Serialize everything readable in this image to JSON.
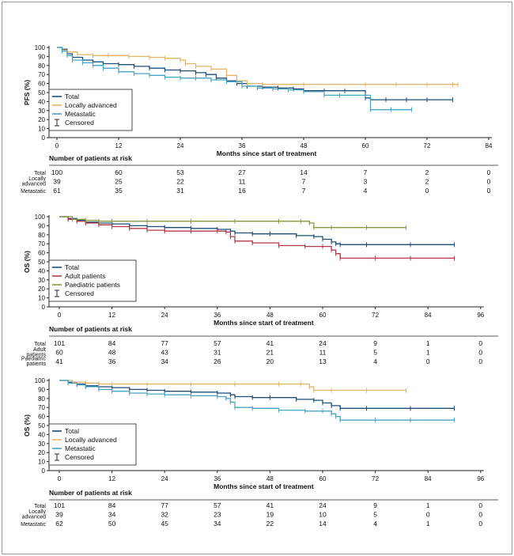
{
  "chart_data": [
    {
      "type": "line",
      "ylabel": "PFS (%)",
      "xlabel": "Months since start of treatment",
      "xlim": [
        0,
        84
      ],
      "ylim": [
        0,
        100
      ],
      "xticks": [
        "0",
        "12",
        "24",
        "36",
        "48",
        "60",
        "72",
        "84"
      ],
      "yticks": [
        "0",
        "10",
        "20",
        "30",
        "40",
        "50",
        "60",
        "70",
        "80",
        "90",
        "100"
      ],
      "legend_position": "bottom-left",
      "legend_censored": "Censored",
      "series": [
        {
          "name": "Total",
          "color": "#1f4e79",
          "x": [
            0,
            1,
            2,
            3,
            5,
            7,
            9,
            12,
            15,
            18,
            21,
            24,
            27,
            29,
            31,
            33,
            35,
            37,
            40,
            43,
            46,
            48,
            52,
            56,
            60,
            61,
            64,
            68,
            72,
            77
          ],
          "y": [
            100,
            98,
            93,
            89,
            86,
            84,
            82,
            81,
            79,
            77,
            75,
            74,
            72,
            70,
            66,
            63,
            60,
            57,
            56,
            55,
            54,
            52,
            52,
            52,
            44,
            42,
            42,
            42,
            42,
            42
          ]
        },
        {
          "name": "Locally advanced",
          "color": "#e3b46a",
          "x": [
            0,
            1,
            2,
            4,
            7,
            10,
            14,
            18,
            21,
            24,
            25,
            27,
            30,
            33,
            35,
            37,
            40,
            48,
            60,
            66,
            72,
            77,
            78
          ],
          "y": [
            100,
            97,
            95,
            92,
            91,
            91,
            90,
            89,
            88,
            86,
            82,
            79,
            76,
            69,
            63,
            60,
            59,
            59,
            59,
            59,
            59,
            59,
            59
          ]
        },
        {
          "name": "Metastatic",
          "color": "#4aa4c4",
          "x": [
            0,
            1,
            2,
            3,
            5,
            7,
            9,
            12,
            15,
            18,
            21,
            24,
            27,
            30,
            33,
            36,
            39,
            42,
            45,
            48,
            52,
            55,
            60,
            61,
            65,
            69
          ],
          "y": [
            100,
            96,
            91,
            86,
            83,
            80,
            77,
            73,
            71,
            69,
            67,
            66,
            66,
            64,
            62,
            57,
            55,
            54,
            53,
            51,
            47,
            47,
            47,
            31,
            31,
            31
          ]
        }
      ],
      "risk_table": {
        "title": "Number of patients at risk",
        "times": [
          0,
          12,
          24,
          36,
          48,
          60,
          72,
          84
        ],
        "rows": [
          {
            "label": "Total",
            "values": [
              "100",
              "60",
              "53",
              "27",
              "14",
              "7",
              "2",
              "0"
            ]
          },
          {
            "label": "Locally advanced",
            "values": [
              "39",
              "25",
              "22",
              "11",
              "7",
              "3",
              "2",
              "0"
            ]
          },
          {
            "label": "Metastatic",
            "values": [
              "61",
              "35",
              "31",
              "16",
              "7",
              "4",
              "0",
              "0"
            ]
          }
        ]
      }
    },
    {
      "type": "line",
      "ylabel": "OS (%)",
      "xlabel": "Months since start of treatment",
      "xlim": [
        0,
        96
      ],
      "ylim": [
        0,
        100
      ],
      "xticks": [
        "0",
        "12",
        "24",
        "36",
        "48",
        "60",
        "72",
        "84",
        "96"
      ],
      "yticks": [
        "0",
        "10",
        "20",
        "30",
        "40",
        "50",
        "60",
        "70",
        "80",
        "90",
        "100"
      ],
      "legend_position": "bottom-left",
      "legend_censored": "Censored",
      "series": [
        {
          "name": "Total",
          "color": "#1f4e79",
          "x": [
            0,
            2,
            4,
            6,
            9,
            12,
            16,
            20,
            24,
            30,
            36,
            39,
            40,
            44,
            48,
            54,
            58,
            60,
            62,
            63,
            64,
            70,
            80,
            90
          ],
          "y": [
            100,
            98,
            96,
            94,
            93,
            92,
            90,
            89,
            88,
            87,
            86,
            84,
            82,
            81,
            81,
            79,
            78,
            75,
            72,
            70,
            69,
            69,
            69,
            69
          ]
        },
        {
          "name": "Adult patients",
          "color": "#b23a48",
          "x": [
            0,
            2,
            4,
            6,
            9,
            12,
            16,
            20,
            24,
            30,
            36,
            38,
            39,
            40,
            44,
            50,
            56,
            60,
            62,
            63,
            64,
            72,
            80,
            90
          ],
          "y": [
            100,
            97,
            95,
            93,
            91,
            89,
            87,
            85,
            84,
            84,
            84,
            83,
            78,
            73,
            71,
            68,
            67,
            67,
            63,
            59,
            54,
            54,
            54,
            54
          ]
        },
        {
          "name": "Paediatric patients",
          "color": "#8a9a3e",
          "x": [
            0,
            3,
            6,
            9,
            12,
            20,
            30,
            40,
            50,
            55,
            57,
            58,
            62,
            70,
            79
          ],
          "y": [
            100,
            97,
            96,
            95,
            95,
            95,
            95,
            95,
            95,
            95,
            93,
            88,
            88,
            88,
            88
          ]
        }
      ],
      "risk_table": {
        "title": "Number of patients at risk",
        "times": [
          0,
          12,
          24,
          36,
          48,
          60,
          72,
          84,
          96
        ],
        "rows": [
          {
            "label": "Total",
            "values": [
              "101",
              "84",
              "77",
              "57",
              "41",
              "24",
              "9",
              "1",
              "0"
            ]
          },
          {
            "label": "Adult patients",
            "values": [
              "60",
              "48",
              "43",
              "31",
              "21",
              "11",
              "5",
              "1",
              "0"
            ]
          },
          {
            "label": "Paediatric patients",
            "values": [
              "41",
              "36",
              "34",
              "26",
              "20",
              "13",
              "4",
              "0",
              "0"
            ]
          }
        ]
      }
    },
    {
      "type": "line",
      "ylabel": "OS (%)",
      "xlabel": "Months since start of treatment",
      "xlim": [
        0,
        96
      ],
      "ylim": [
        0,
        100
      ],
      "xticks": [
        "0",
        "12",
        "24",
        "36",
        "48",
        "60",
        "72",
        "84",
        "96"
      ],
      "yticks": [
        "0",
        "10",
        "20",
        "30",
        "40",
        "50",
        "60",
        "70",
        "80",
        "90",
        "100"
      ],
      "legend_position": "bottom-left",
      "legend_censored": "Censored",
      "series": [
        {
          "name": "Total",
          "color": "#1f4e79",
          "x": [
            0,
            2,
            4,
            6,
            9,
            12,
            16,
            20,
            24,
            30,
            36,
            39,
            40,
            44,
            48,
            54,
            58,
            60,
            62,
            64,
            70,
            80,
            90
          ],
          "y": [
            100,
            98,
            96,
            94,
            93,
            92,
            90,
            89,
            88,
            87,
            86,
            84,
            82,
            81,
            81,
            79,
            78,
            75,
            72,
            69,
            69,
            69,
            69
          ]
        },
        {
          "name": "Locally advanced",
          "color": "#e3b46a",
          "x": [
            0,
            3,
            6,
            9,
            12,
            20,
            30,
            40,
            50,
            55,
            57,
            58,
            62,
            70,
            79
          ],
          "y": [
            100,
            98,
            97,
            96,
            96,
            96,
            96,
            96,
            96,
            96,
            93,
            89,
            89,
            89,
            89
          ]
        },
        {
          "name": "Metastatic",
          "color": "#4aa4c4",
          "x": [
            0,
            2,
            4,
            6,
            9,
            12,
            16,
            20,
            24,
            30,
            36,
            38,
            39,
            40,
            44,
            50,
            56,
            60,
            62,
            63,
            64,
            72,
            80,
            90
          ],
          "y": [
            100,
            97,
            95,
            93,
            90,
            88,
            86,
            85,
            84,
            83,
            82,
            80,
            76,
            70,
            69,
            67,
            66,
            66,
            63,
            60,
            56,
            56,
            56,
            56
          ]
        }
      ],
      "risk_table": {
        "title": "Number of patients at risk",
        "times": [
          0,
          12,
          24,
          36,
          48,
          60,
          72,
          84,
          96
        ],
        "rows": [
          {
            "label": "Total",
            "values": [
              "101",
              "84",
              "77",
              "57",
              "41",
              "24",
              "9",
              "1",
              "0"
            ]
          },
          {
            "label": "Locally advanced",
            "values": [
              "39",
              "34",
              "32",
              "23",
              "19",
              "10",
              "5",
              "0",
              "0"
            ]
          },
          {
            "label": "Metastatic",
            "values": [
              "62",
              "50",
              "45",
              "34",
              "22",
              "14",
              "4",
              "1",
              "0"
            ]
          }
        ]
      }
    }
  ]
}
